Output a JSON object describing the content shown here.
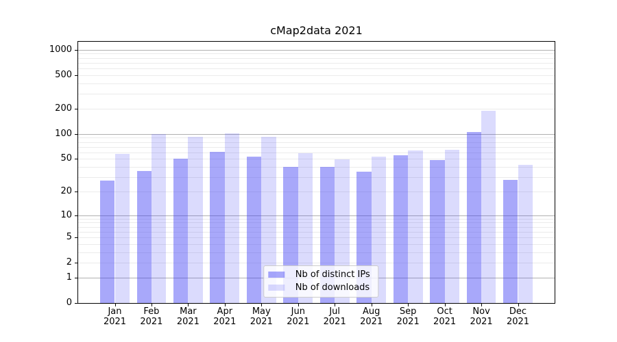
{
  "title": "cMap2data 2021",
  "colors": {
    "bar_distinct_ips_rgba": "rgba(62,62,245,0.45)",
    "bar_distinct_ips_hex": "#a8a8fa",
    "bar_downloads_rgba": "rgba(62,62,245,0.19)",
    "bar_downloads_hex": "#dbdbfc",
    "grid_major": "#b0b0b0",
    "grid_minor": "#ebebeb",
    "axis": "#000000",
    "legend_border": "#cccccc",
    "background": "#ffffff"
  },
  "chart_data": {
    "type": "bar",
    "title": "cMap2data 2021",
    "categories": [
      "Jan",
      "Feb",
      "Mar",
      "Apr",
      "May",
      "Jun",
      "Jul",
      "Aug",
      "Sep",
      "Oct",
      "Nov",
      "Dec"
    ],
    "category_year": "2021",
    "series": [
      {
        "name": "Nb of distinct IPs",
        "values": [
          27,
          36,
          50,
          61,
          53,
          40,
          40,
          35,
          55,
          48,
          106,
          28
        ],
        "color": "rgba(62,62,245,0.45)"
      },
      {
        "name": "Nb of downloads",
        "values": [
          57,
          100,
          92,
          102,
          93,
          59,
          49,
          53,
          63,
          64,
          189,
          42
        ],
        "color": "rgba(62,62,245,0.19)"
      }
    ],
    "yscale": "log10(value+1)",
    "yticks": [
      0,
      1,
      2,
      5,
      10,
      20,
      50,
      100,
      200,
      500,
      1000
    ],
    "ylim": [
      0,
      1244
    ],
    "grid": "horizontal major+minor",
    "legend_position": "lower center"
  }
}
